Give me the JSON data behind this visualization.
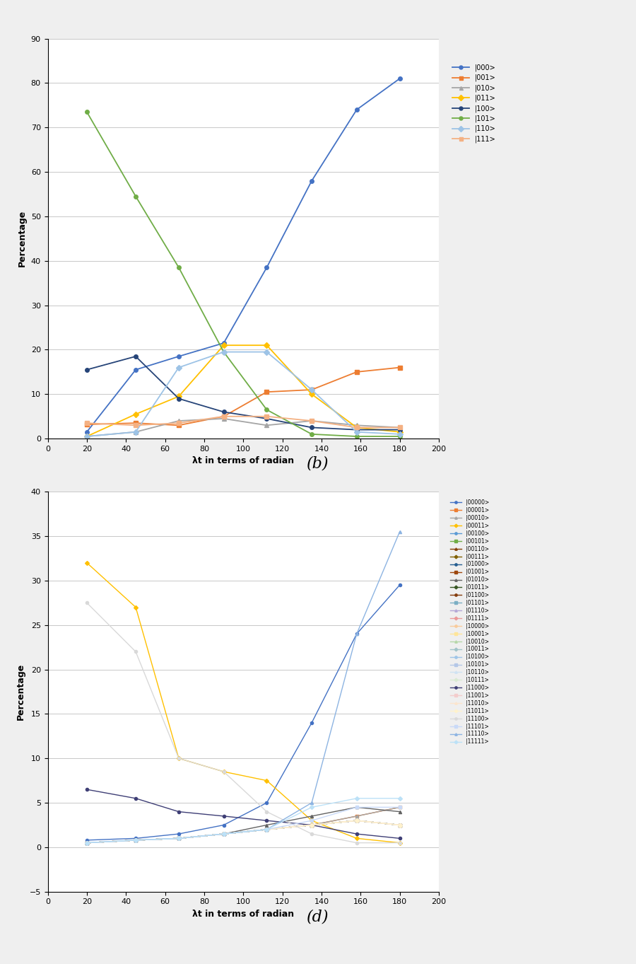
{
  "panel_b": {
    "xlabel": "λt in terms of radian",
    "ylabel": "Percentage",
    "xlim": [
      0,
      200
    ],
    "ylim": [
      0,
      90
    ],
    "xticks": [
      0,
      20,
      40,
      60,
      80,
      100,
      120,
      140,
      160,
      180,
      200
    ],
    "yticks": [
      0,
      10,
      20,
      30,
      40,
      50,
      60,
      70,
      80,
      90
    ],
    "x_vals": [
      20,
      45,
      67,
      90,
      112,
      135,
      158,
      180
    ],
    "states": {
      "|000>": {
        "color": "#4472C4",
        "marker": "o",
        "values": [
          1.5,
          15.5,
          18.5,
          21.5,
          38.5,
          58.0,
          74.0,
          81.0
        ]
      },
      "|001>": {
        "color": "#ED7D31",
        "marker": "s",
        "values": [
          3.2,
          3.5,
          3.0,
          5.0,
          10.5,
          11.0,
          15.0,
          16.0
        ]
      },
      "|010>": {
        "color": "#A5A5A5",
        "marker": "^",
        "values": [
          0.5,
          1.5,
          4.0,
          4.5,
          3.0,
          4.0,
          3.0,
          2.5
        ]
      },
      "|011>": {
        "color": "#FFC000",
        "marker": "D",
        "values": [
          0.5,
          5.5,
          9.5,
          21.0,
          21.0,
          10.0,
          2.5,
          1.5
        ]
      },
      "|100>": {
        "color": "#264478",
        "marker": "o",
        "values": [
          15.5,
          18.5,
          9.0,
          6.0,
          4.5,
          2.5,
          2.0,
          2.0
        ]
      },
      "|101>": {
        "color": "#70AD47",
        "marker": "o",
        "values": [
          73.5,
          54.5,
          38.5,
          19.5,
          6.5,
          1.0,
          0.5,
          0.5
        ]
      },
      "|110>": {
        "color": "#9DC3E6",
        "marker": "D",
        "values": [
          0.5,
          1.5,
          16.0,
          19.5,
          19.5,
          11.0,
          1.5,
          1.0
        ]
      },
      "|111>": {
        "color": "#F4B183",
        "marker": "s",
        "values": [
          3.5,
          3.0,
          3.5,
          5.0,
          5.0,
          4.0,
          2.5,
          2.5
        ]
      }
    }
  },
  "panel_d": {
    "xlabel": "λt in terms of radian",
    "ylabel": "Percentage",
    "xlim": [
      0,
      200
    ],
    "ylim": [
      -5,
      40
    ],
    "xticks": [
      0,
      20,
      40,
      60,
      80,
      100,
      120,
      140,
      160,
      180,
      200
    ],
    "yticks": [
      -5,
      0,
      5,
      10,
      15,
      20,
      25,
      30,
      35,
      40
    ],
    "x_vals": [
      20,
      45,
      67,
      90,
      112,
      135,
      158,
      180
    ],
    "states": {
      "|00000>": {
        "color": "#4472C4",
        "marker": "o",
        "values": [
          0.8,
          1.0,
          1.5,
          2.5,
          5.0,
          14.0,
          24.0,
          29.5
        ]
      },
      "|00001>": {
        "color": "#ED7D31",
        "marker": "s",
        "values": [
          0.5,
          0.8,
          1.0,
          1.5,
          2.0,
          2.5,
          3.5,
          4.5
        ]
      },
      "|00010>": {
        "color": "#A5A5A5",
        "marker": "^",
        "values": [
          0.5,
          0.8,
          1.0,
          1.5,
          2.0,
          2.5,
          3.5,
          4.5
        ]
      },
      "|00011>": {
        "color": "#FFC000",
        "marker": "D",
        "values": [
          32.0,
          27.0,
          10.0,
          8.5,
          7.5,
          3.0,
          1.0,
          0.5
        ]
      },
      "|00100>": {
        "color": "#5B9BD5",
        "marker": "o",
        "values": [
          0.5,
          0.8,
          1.0,
          1.5,
          2.0,
          2.5,
          3.0,
          2.5
        ]
      },
      "|00101>": {
        "color": "#70AD47",
        "marker": "s",
        "values": [
          0.5,
          0.8,
          1.0,
          1.5,
          2.0,
          2.5,
          3.0,
          2.5
        ]
      },
      "|00110>": {
        "color": "#833C00",
        "marker": "^",
        "values": [
          0.5,
          0.8,
          1.0,
          1.5,
          2.0,
          2.5,
          3.0,
          2.5
        ]
      },
      "|00111>": {
        "color": "#806000",
        "marker": "D",
        "values": [
          0.5,
          0.8,
          1.0,
          1.5,
          2.0,
          2.5,
          3.0,
          2.5
        ]
      },
      "|01000>": {
        "color": "#255E91",
        "marker": "o",
        "values": [
          0.5,
          0.8,
          1.0,
          1.5,
          2.0,
          2.5,
          3.0,
          2.5
        ]
      },
      "|01001>": {
        "color": "#9E480E",
        "marker": "s",
        "values": [
          0.5,
          0.8,
          1.0,
          1.5,
          2.0,
          2.5,
          3.0,
          2.5
        ]
      },
      "|01010>": {
        "color": "#636363",
        "marker": "^",
        "values": [
          0.5,
          0.8,
          1.0,
          1.5,
          2.5,
          3.5,
          4.5,
          4.0
        ]
      },
      "|01011>": {
        "color": "#375623",
        "marker": "D",
        "values": [
          0.5,
          0.8,
          1.0,
          1.5,
          2.0,
          2.5,
          3.0,
          2.5
        ]
      },
      "|01100>": {
        "color": "#843C0C",
        "marker": "o",
        "values": [
          0.5,
          0.8,
          1.0,
          1.5,
          2.0,
          2.5,
          3.0,
          2.5
        ]
      },
      "|01101>": {
        "color": "#7CAFC4",
        "marker": "s",
        "values": [
          0.5,
          0.8,
          1.0,
          1.5,
          2.0,
          2.5,
          3.0,
          2.5
        ]
      },
      "|01110>": {
        "color": "#B4A7D6",
        "marker": "^",
        "values": [
          0.5,
          0.8,
          1.0,
          1.5,
          2.0,
          2.5,
          3.0,
          2.5
        ]
      },
      "|01111>": {
        "color": "#EA9999",
        "marker": "D",
        "values": [
          0.5,
          0.8,
          1.0,
          1.5,
          2.0,
          2.5,
          3.0,
          2.5
        ]
      },
      "|10000>": {
        "color": "#F9CB9C",
        "marker": "o",
        "values": [
          0.5,
          0.8,
          1.0,
          1.5,
          2.0,
          2.5,
          3.0,
          2.5
        ]
      },
      "|10001>": {
        "color": "#FFE599",
        "marker": "s",
        "values": [
          0.5,
          0.8,
          1.0,
          1.5,
          2.0,
          2.5,
          3.0,
          2.5
        ]
      },
      "|10010>": {
        "color": "#B6D7A8",
        "marker": "^",
        "values": [
          0.5,
          0.8,
          1.0,
          1.5,
          2.0,
          2.5,
          3.0,
          2.5
        ]
      },
      "|10011>": {
        "color": "#A2C4C9",
        "marker": "D",
        "values": [
          0.5,
          0.8,
          1.0,
          1.5,
          2.0,
          2.5,
          3.0,
          2.5
        ]
      },
      "|10100>": {
        "color": "#9FC5E8",
        "marker": "o",
        "values": [
          0.5,
          0.8,
          1.0,
          1.5,
          2.0,
          2.5,
          3.0,
          2.5
        ]
      },
      "|10101>": {
        "color": "#B4C7E7",
        "marker": "s",
        "values": [
          0.5,
          0.8,
          1.0,
          1.5,
          2.0,
          2.5,
          3.0,
          2.5
        ]
      },
      "|10110>": {
        "color": "#CFE2F3",
        "marker": "^",
        "values": [
          0.5,
          0.8,
          1.0,
          1.5,
          2.0,
          2.5,
          3.0,
          2.5
        ]
      },
      "|10111>": {
        "color": "#D9EAD3",
        "marker": "D",
        "values": [
          0.5,
          0.8,
          1.0,
          1.5,
          2.0,
          2.5,
          3.0,
          2.5
        ]
      },
      "|11000>": {
        "color": "#3F3F76",
        "marker": "o",
        "values": [
          6.5,
          5.5,
          4.0,
          3.5,
          3.0,
          2.5,
          1.5,
          1.0
        ]
      },
      "|11001>": {
        "color": "#F4CCCC",
        "marker": "s",
        "values": [
          0.5,
          0.8,
          1.0,
          1.5,
          2.0,
          2.5,
          3.0,
          2.5
        ]
      },
      "|11010>": {
        "color": "#FCE5CD",
        "marker": "^",
        "values": [
          0.5,
          0.8,
          1.0,
          1.5,
          2.0,
          2.5,
          3.0,
          2.5
        ]
      },
      "|11011>": {
        "color": "#FFF2CC",
        "marker": "D",
        "values": [
          0.5,
          0.8,
          1.0,
          1.5,
          2.0,
          2.5,
          3.0,
          2.5
        ]
      },
      "|11100>": {
        "color": "#D9D9D9",
        "marker": "o",
        "values": [
          27.5,
          22.0,
          10.0,
          8.5,
          4.0,
          1.5,
          0.5,
          0.5
        ]
      },
      "|11101>": {
        "color": "#C9DAF8",
        "marker": "s",
        "values": [
          0.5,
          0.8,
          1.0,
          1.5,
          2.0,
          3.0,
          4.5,
          4.5
        ]
      },
      "|11110>": {
        "color": "#8DB4E2",
        "marker": "^",
        "values": [
          0.5,
          0.8,
          1.0,
          1.5,
          2.0,
          5.0,
          24.0,
          35.5
        ]
      },
      "|11111>": {
        "color": "#BCE1F7",
        "marker": "D",
        "values": [
          0.5,
          0.8,
          1.0,
          1.5,
          2.0,
          4.5,
          5.5,
          5.5
        ]
      }
    }
  },
  "figure_bg": "#EFEFEF",
  "plot_bg": "#FFFFFF",
  "grid_color": "#C8C8C8"
}
